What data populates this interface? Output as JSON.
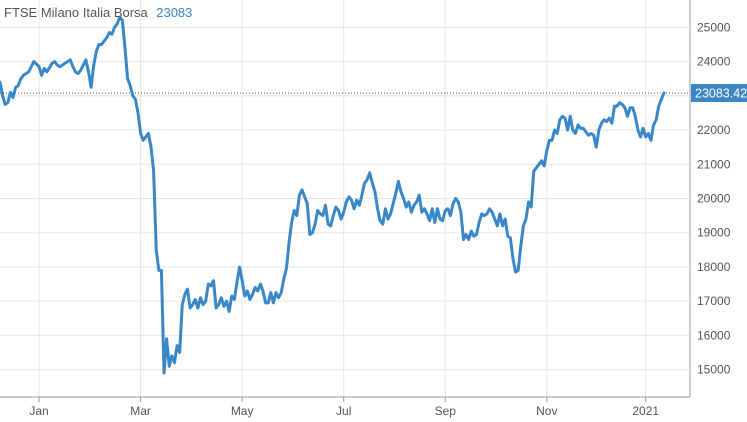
{
  "chart_data": {
    "type": "line",
    "title": "FTSE Milano Italia Borsa",
    "title_value": "23083",
    "last_value_label": "23083.42",
    "last_value": 23083.42,
    "y_range": [
      14200,
      25800
    ],
    "y_ticks": [
      15000,
      16000,
      17000,
      18000,
      19000,
      20000,
      21000,
      22000,
      23000,
      24000,
      25000
    ],
    "x_range": [
      0,
      265
    ],
    "x_ticks": [
      {
        "label": "Jan",
        "x": 15
      },
      {
        "label": "Mar",
        "x": 54
      },
      {
        "label": "May",
        "x": 93
      },
      {
        "label": "Jul",
        "x": 132
      },
      {
        "label": "Sep",
        "x": 171
      },
      {
        "label": "Nov",
        "x": 210
      },
      {
        "label": "2021",
        "x": 248
      }
    ],
    "grid": true,
    "line_color": "#3a87c8",
    "series": [
      {
        "points": [
          [
            0,
            23400
          ],
          [
            1,
            23000
          ],
          [
            2,
            22750
          ],
          [
            3,
            22800
          ],
          [
            4,
            23100
          ],
          [
            5,
            22950
          ],
          [
            6,
            23250
          ],
          [
            7,
            23300
          ],
          [
            8,
            23500
          ],
          [
            9,
            23600
          ],
          [
            11,
            23700
          ],
          [
            13,
            24000
          ],
          [
            15,
            23850
          ],
          [
            16,
            23600
          ],
          [
            17,
            23800
          ],
          [
            18,
            23700
          ],
          [
            20,
            23950
          ],
          [
            21,
            24000
          ],
          [
            22,
            23900
          ],
          [
            23,
            23850
          ],
          [
            25,
            23950
          ],
          [
            27,
            24050
          ],
          [
            28,
            23850
          ],
          [
            29,
            23700
          ],
          [
            30,
            23650
          ],
          [
            31,
            23750
          ],
          [
            32,
            23900
          ],
          [
            33,
            24050
          ],
          [
            34,
            23700
          ],
          [
            35,
            23250
          ],
          [
            36,
            23900
          ],
          [
            37,
            24300
          ],
          [
            38,
            24500
          ],
          [
            39,
            24500
          ],
          [
            40,
            24600
          ],
          [
            41,
            24700
          ],
          [
            42,
            24850
          ],
          [
            43,
            24800
          ],
          [
            44,
            25000
          ],
          [
            45,
            25100
          ],
          [
            46,
            25300
          ],
          [
            47,
            25200
          ],
          [
            48,
            24400
          ],
          [
            49,
            23500
          ],
          [
            50,
            23300
          ],
          [
            51,
            23000
          ],
          [
            52,
            22900
          ],
          [
            53,
            22500
          ],
          [
            54,
            21900
          ],
          [
            55,
            21700
          ],
          [
            56,
            21800
          ],
          [
            57,
            21900
          ],
          [
            58,
            21500
          ],
          [
            59,
            20800
          ],
          [
            60,
            18500
          ],
          [
            61,
            17900
          ],
          [
            62,
            17900
          ],
          [
            63,
            14900
          ],
          [
            64,
            15900
          ],
          [
            65,
            15100
          ],
          [
            66,
            15400
          ],
          [
            67,
            15200
          ],
          [
            68,
            15700
          ],
          [
            69,
            15500
          ],
          [
            70,
            16900
          ],
          [
            71,
            17200
          ],
          [
            72,
            17350
          ],
          [
            73,
            16800
          ],
          [
            74,
            16900
          ],
          [
            75,
            17050
          ],
          [
            76,
            16800
          ],
          [
            77,
            17100
          ],
          [
            78,
            16900
          ],
          [
            79,
            17000
          ],
          [
            80,
            17500
          ],
          [
            81,
            17450
          ],
          [
            82,
            17600
          ],
          [
            83,
            16800
          ],
          [
            84,
            16900
          ],
          [
            85,
            17100
          ],
          [
            86,
            16850
          ],
          [
            87,
            17000
          ],
          [
            88,
            16700
          ],
          [
            89,
            17150
          ],
          [
            90,
            17050
          ],
          [
            91,
            17550
          ],
          [
            92,
            18000
          ],
          [
            93,
            17600
          ],
          [
            94,
            17150
          ],
          [
            95,
            17300
          ],
          [
            96,
            17050
          ],
          [
            97,
            17200
          ],
          [
            98,
            17400
          ],
          [
            99,
            17300
          ],
          [
            100,
            17500
          ],
          [
            101,
            17300
          ],
          [
            102,
            16950
          ],
          [
            103,
            16950
          ],
          [
            104,
            17250
          ],
          [
            105,
            16950
          ],
          [
            106,
            17250
          ],
          [
            107,
            17100
          ],
          [
            108,
            17250
          ],
          [
            109,
            17650
          ],
          [
            110,
            17950
          ],
          [
            111,
            18700
          ],
          [
            112,
            19300
          ],
          [
            113,
            19650
          ],
          [
            114,
            19500
          ],
          [
            115,
            20100
          ],
          [
            116,
            20250
          ],
          [
            117,
            20050
          ],
          [
            118,
            19850
          ],
          [
            119,
            18950
          ],
          [
            120,
            19000
          ],
          [
            121,
            19250
          ],
          [
            122,
            19650
          ],
          [
            123,
            19550
          ],
          [
            124,
            19500
          ],
          [
            125,
            19800
          ],
          [
            126,
            19250
          ],
          [
            127,
            19200
          ],
          [
            128,
            19500
          ],
          [
            129,
            19750
          ],
          [
            130,
            19650
          ],
          [
            131,
            19400
          ],
          [
            132,
            19600
          ],
          [
            133,
            19900
          ],
          [
            134,
            20050
          ],
          [
            135,
            19950
          ],
          [
            136,
            19700
          ],
          [
            137,
            19950
          ],
          [
            138,
            19800
          ],
          [
            139,
            20100
          ],
          [
            140,
            20450
          ],
          [
            141,
            20550
          ],
          [
            142,
            20750
          ],
          [
            143,
            20450
          ],
          [
            144,
            20200
          ],
          [
            145,
            19700
          ],
          [
            146,
            19350
          ],
          [
            147,
            19250
          ],
          [
            148,
            19700
          ],
          [
            149,
            19400
          ],
          [
            150,
            19550
          ],
          [
            151,
            19850
          ],
          [
            152,
            20150
          ],
          [
            153,
            20500
          ],
          [
            154,
            20200
          ],
          [
            155,
            20000
          ],
          [
            156,
            19750
          ],
          [
            157,
            19900
          ],
          [
            158,
            19600
          ],
          [
            159,
            19800
          ],
          [
            160,
            19900
          ],
          [
            161,
            20100
          ],
          [
            162,
            19600
          ],
          [
            163,
            19700
          ],
          [
            164,
            19550
          ],
          [
            165,
            19350
          ],
          [
            166,
            19700
          ],
          [
            167,
            19300
          ],
          [
            168,
            19700
          ],
          [
            169,
            19400
          ],
          [
            170,
            19350
          ],
          [
            171,
            19650
          ],
          [
            172,
            19700
          ],
          [
            173,
            19500
          ],
          [
            174,
            19850
          ],
          [
            175,
            20000
          ],
          [
            176,
            19900
          ],
          [
            177,
            19600
          ],
          [
            178,
            18800
          ],
          [
            179,
            18950
          ],
          [
            180,
            18800
          ],
          [
            181,
            19050
          ],
          [
            182,
            18900
          ],
          [
            183,
            18950
          ],
          [
            184,
            19300
          ],
          [
            185,
            19550
          ],
          [
            186,
            19500
          ],
          [
            187,
            19550
          ],
          [
            188,
            19700
          ],
          [
            189,
            19600
          ],
          [
            190,
            19400
          ],
          [
            191,
            19200
          ],
          [
            192,
            19550
          ],
          [
            193,
            19200
          ],
          [
            194,
            19400
          ],
          [
            195,
            18900
          ],
          [
            196,
            18850
          ],
          [
            197,
            18250
          ],
          [
            198,
            17850
          ],
          [
            199,
            17900
          ],
          [
            200,
            18600
          ],
          [
            201,
            19200
          ],
          [
            202,
            19400
          ],
          [
            203,
            19900
          ],
          [
            204,
            19750
          ],
          [
            205,
            20800
          ],
          [
            206,
            20900
          ],
          [
            207,
            21000
          ],
          [
            208,
            21100
          ],
          [
            209,
            20950
          ],
          [
            210,
            21400
          ],
          [
            211,
            21700
          ],
          [
            212,
            21700
          ],
          [
            213,
            22000
          ],
          [
            214,
            21900
          ],
          [
            215,
            22300
          ],
          [
            216,
            22400
          ],
          [
            217,
            22350
          ],
          [
            218,
            22000
          ],
          [
            219,
            22400
          ],
          [
            220,
            22000
          ],
          [
            221,
            21900
          ],
          [
            222,
            22150
          ],
          [
            223,
            22050
          ],
          [
            224,
            22050
          ],
          [
            225,
            21950
          ],
          [
            226,
            21850
          ],
          [
            227,
            21900
          ],
          [
            228,
            21850
          ],
          [
            229,
            21500
          ],
          [
            230,
            22000
          ],
          [
            231,
            22200
          ],
          [
            232,
            22300
          ],
          [
            233,
            22250
          ],
          [
            234,
            22350
          ],
          [
            235,
            22200
          ],
          [
            236,
            22700
          ],
          [
            237,
            22700
          ],
          [
            238,
            22800
          ],
          [
            239,
            22750
          ],
          [
            240,
            22650
          ],
          [
            241,
            22400
          ],
          [
            242,
            22650
          ],
          [
            243,
            22650
          ],
          [
            244,
            22400
          ],
          [
            245,
            22000
          ],
          [
            246,
            21800
          ],
          [
            247,
            22050
          ],
          [
            248,
            21800
          ],
          [
            249,
            21900
          ],
          [
            250,
            21700
          ],
          [
            251,
            22150
          ],
          [
            252,
            22300
          ],
          [
            253,
            22700
          ],
          [
            254,
            22900
          ],
          [
            255,
            23083.42
          ]
        ]
      }
    ]
  }
}
